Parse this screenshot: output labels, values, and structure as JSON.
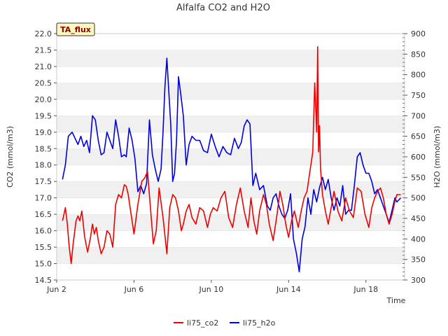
{
  "chart_data": {
    "type": "line",
    "title": "Alfalfa CO2 and H2O",
    "badge": "TA_flux",
    "xlabel": "Time",
    "ylabel_left": "CO2 (mmol/m3)",
    "ylabel_right": "H2O (mmol/m3)",
    "xlim": [
      2.0,
      20.0
    ],
    "ylim_left": [
      14.5,
      22.0
    ],
    "ylim_right": [
      300,
      900
    ],
    "x_ticks": [
      {
        "value": 2,
        "label": "Jun 2"
      },
      {
        "value": 6,
        "label": "Jun 6"
      },
      {
        "value": 10,
        "label": "Jun 10"
      },
      {
        "value": 14,
        "label": "Jun 14"
      },
      {
        "value": 18,
        "label": "Jun 18"
      }
    ],
    "y_ticks_left": [
      "14.5",
      "15.0",
      "15.5",
      "16.0",
      "16.5",
      "17.0",
      "17.5",
      "18.0",
      "18.5",
      "19.0",
      "19.5",
      "20.0",
      "20.5",
      "21.0",
      "21.5",
      "22.0"
    ],
    "y_ticks_right": [
      "300",
      "350",
      "400",
      "450",
      "500",
      "550",
      "600",
      "650",
      "700",
      "750",
      "800",
      "850",
      "900"
    ],
    "grid": "horizontal bands",
    "legend_position": "bottom-center",
    "series": [
      {
        "name": "li75_co2",
        "axis": "left",
        "color": "#ee0000",
        "x": [
          2.3,
          2.45,
          2.55,
          2.65,
          2.75,
          2.85,
          3.0,
          3.1,
          3.2,
          3.3,
          3.45,
          3.6,
          3.75,
          3.85,
          3.95,
          4.05,
          4.15,
          4.3,
          4.45,
          4.6,
          4.75,
          4.9,
          5.05,
          5.2,
          5.35,
          5.5,
          5.6,
          5.7,
          5.8,
          5.9,
          6.0,
          6.2,
          6.4,
          6.55,
          6.7,
          6.85,
          7.0,
          7.15,
          7.3,
          7.5,
          7.7,
          7.85,
          8.0,
          8.15,
          8.3,
          8.45,
          8.55,
          8.7,
          8.85,
          9.0,
          9.2,
          9.4,
          9.6,
          9.8,
          9.95,
          10.1,
          10.3,
          10.5,
          10.7,
          10.9,
          11.1,
          11.3,
          11.5,
          11.7,
          11.9,
          12.05,
          12.2,
          12.35,
          12.5,
          12.7,
          12.85,
          13.0,
          13.2,
          13.4,
          13.55,
          13.7,
          13.85,
          14.0,
          14.15,
          14.3,
          14.5,
          14.65,
          14.8,
          14.95,
          15.1,
          15.25,
          15.35,
          15.45,
          15.5,
          15.55,
          15.6,
          15.65,
          15.75,
          15.9,
          16.05,
          16.2,
          16.35,
          16.55,
          16.75,
          16.95,
          17.15,
          17.35,
          17.55,
          17.75,
          17.95,
          18.15,
          18.3,
          18.45,
          18.6,
          18.75,
          18.9,
          19.05,
          19.2,
          19.35,
          19.5,
          19.6,
          19.8
        ],
        "values": [
          16.3,
          16.7,
          16.2,
          15.5,
          15.0,
          15.6,
          16.3,
          16.45,
          16.3,
          16.6,
          15.8,
          15.35,
          15.8,
          16.2,
          15.9,
          16.1,
          15.7,
          15.3,
          15.5,
          16.0,
          15.9,
          15.5,
          16.8,
          17.1,
          17.0,
          17.4,
          17.35,
          17.1,
          16.7,
          16.3,
          15.9,
          16.8,
          17.5,
          17.6,
          17.8,
          16.7,
          15.6,
          16.0,
          17.3,
          16.4,
          15.3,
          16.7,
          17.1,
          17.0,
          16.6,
          16.0,
          16.2,
          16.6,
          16.8,
          16.4,
          16.2,
          16.7,
          16.6,
          16.1,
          16.5,
          16.7,
          16.6,
          17.0,
          17.2,
          16.4,
          16.1,
          16.8,
          17.3,
          16.6,
          16.1,
          17.0,
          16.3,
          15.9,
          16.6,
          17.1,
          16.8,
          16.2,
          15.7,
          16.5,
          17.2,
          16.8,
          16.2,
          15.8,
          16.3,
          16.6,
          16.1,
          16.6,
          17.0,
          17.2,
          17.8,
          18.4,
          20.5,
          19.0,
          21.6,
          18.4,
          19.2,
          17.9,
          17.1,
          16.6,
          16.2,
          16.7,
          17.2,
          16.6,
          16.3,
          17.0,
          16.6,
          16.4,
          17.3,
          17.2,
          16.5,
          16.1,
          16.7,
          17.0,
          17.2,
          17.3,
          17.0,
          16.5,
          16.2,
          16.5,
          16.9,
          17.1,
          17.1
        ],
        "x_extra": [],
        "values_extra": []
      },
      {
        "name": "li75_h2o",
        "axis": "right",
        "color": "#0000dd",
        "x": [
          2.3,
          2.45,
          2.6,
          2.8,
          2.95,
          3.1,
          3.25,
          3.4,
          3.55,
          3.7,
          3.85,
          4.0,
          4.15,
          4.3,
          4.45,
          4.6,
          4.75,
          4.9,
          5.05,
          5.2,
          5.35,
          5.5,
          5.6,
          5.75,
          5.9,
          6.05,
          6.2,
          6.35,
          6.5,
          6.65,
          6.8,
          6.95,
          7.1,
          7.25,
          7.4,
          7.5,
          7.6,
          7.7,
          7.8,
          7.9,
          8.0,
          8.1,
          8.2,
          8.3,
          8.4,
          8.55,
          8.7,
          8.85,
          9.0,
          9.2,
          9.4,
          9.6,
          9.8,
          10.0,
          10.2,
          10.4,
          10.6,
          10.8,
          11.0,
          11.2,
          11.4,
          11.55,
          11.7,
          11.85,
          12.0,
          12.15,
          12.3,
          12.5,
          12.7,
          12.9,
          13.05,
          13.2,
          13.35,
          13.5,
          13.65,
          13.8,
          13.95,
          14.1,
          14.25,
          14.4,
          14.55,
          14.7,
          14.85,
          15.0,
          15.15,
          15.3,
          15.45,
          15.6,
          15.75,
          15.9,
          16.05,
          16.2,
          16.35,
          16.5,
          16.65,
          16.8,
          16.95,
          17.1,
          17.25,
          17.4,
          17.55,
          17.7,
          17.85,
          18.0,
          18.15,
          18.3,
          18.45,
          18.6,
          18.75,
          18.9,
          19.05,
          19.2,
          19.35,
          19.5,
          19.6,
          19.8
        ],
        "values": [
          545,
          580,
          650,
          660,
          645,
          630,
          650,
          625,
          640,
          610,
          700,
          690,
          640,
          605,
          610,
          660,
          640,
          620,
          690,
          650,
          600,
          605,
          600,
          670,
          640,
          595,
          515,
          530,
          510,
          535,
          690,
          605,
          570,
          540,
          570,
          660,
          770,
          840,
          760,
          680,
          540,
          560,
          640,
          795,
          760,
          700,
          580,
          630,
          650,
          640,
          640,
          615,
          610,
          655,
          625,
          600,
          625,
          610,
          605,
          645,
          620,
          635,
          675,
          690,
          680,
          530,
          560,
          520,
          530,
          480,
          470,
          500,
          510,
          480,
          460,
          450,
          470,
          510,
          400,
          365,
          320,
          400,
          430,
          500,
          460,
          520,
          490,
          525,
          550,
          520,
          545,
          500,
          470,
          500,
          480,
          530,
          460,
          470,
          470,
          530,
          600,
          610,
          580,
          560,
          560,
          540,
          510,
          520,
          500,
          480,
          460,
          440,
          470,
          500,
          490,
          500
        ]
      }
    ]
  },
  "legend": [
    {
      "label": "li75_co2",
      "color": "#ee0000"
    },
    {
      "label": "li75_h2o",
      "color": "#0000dd"
    }
  ]
}
